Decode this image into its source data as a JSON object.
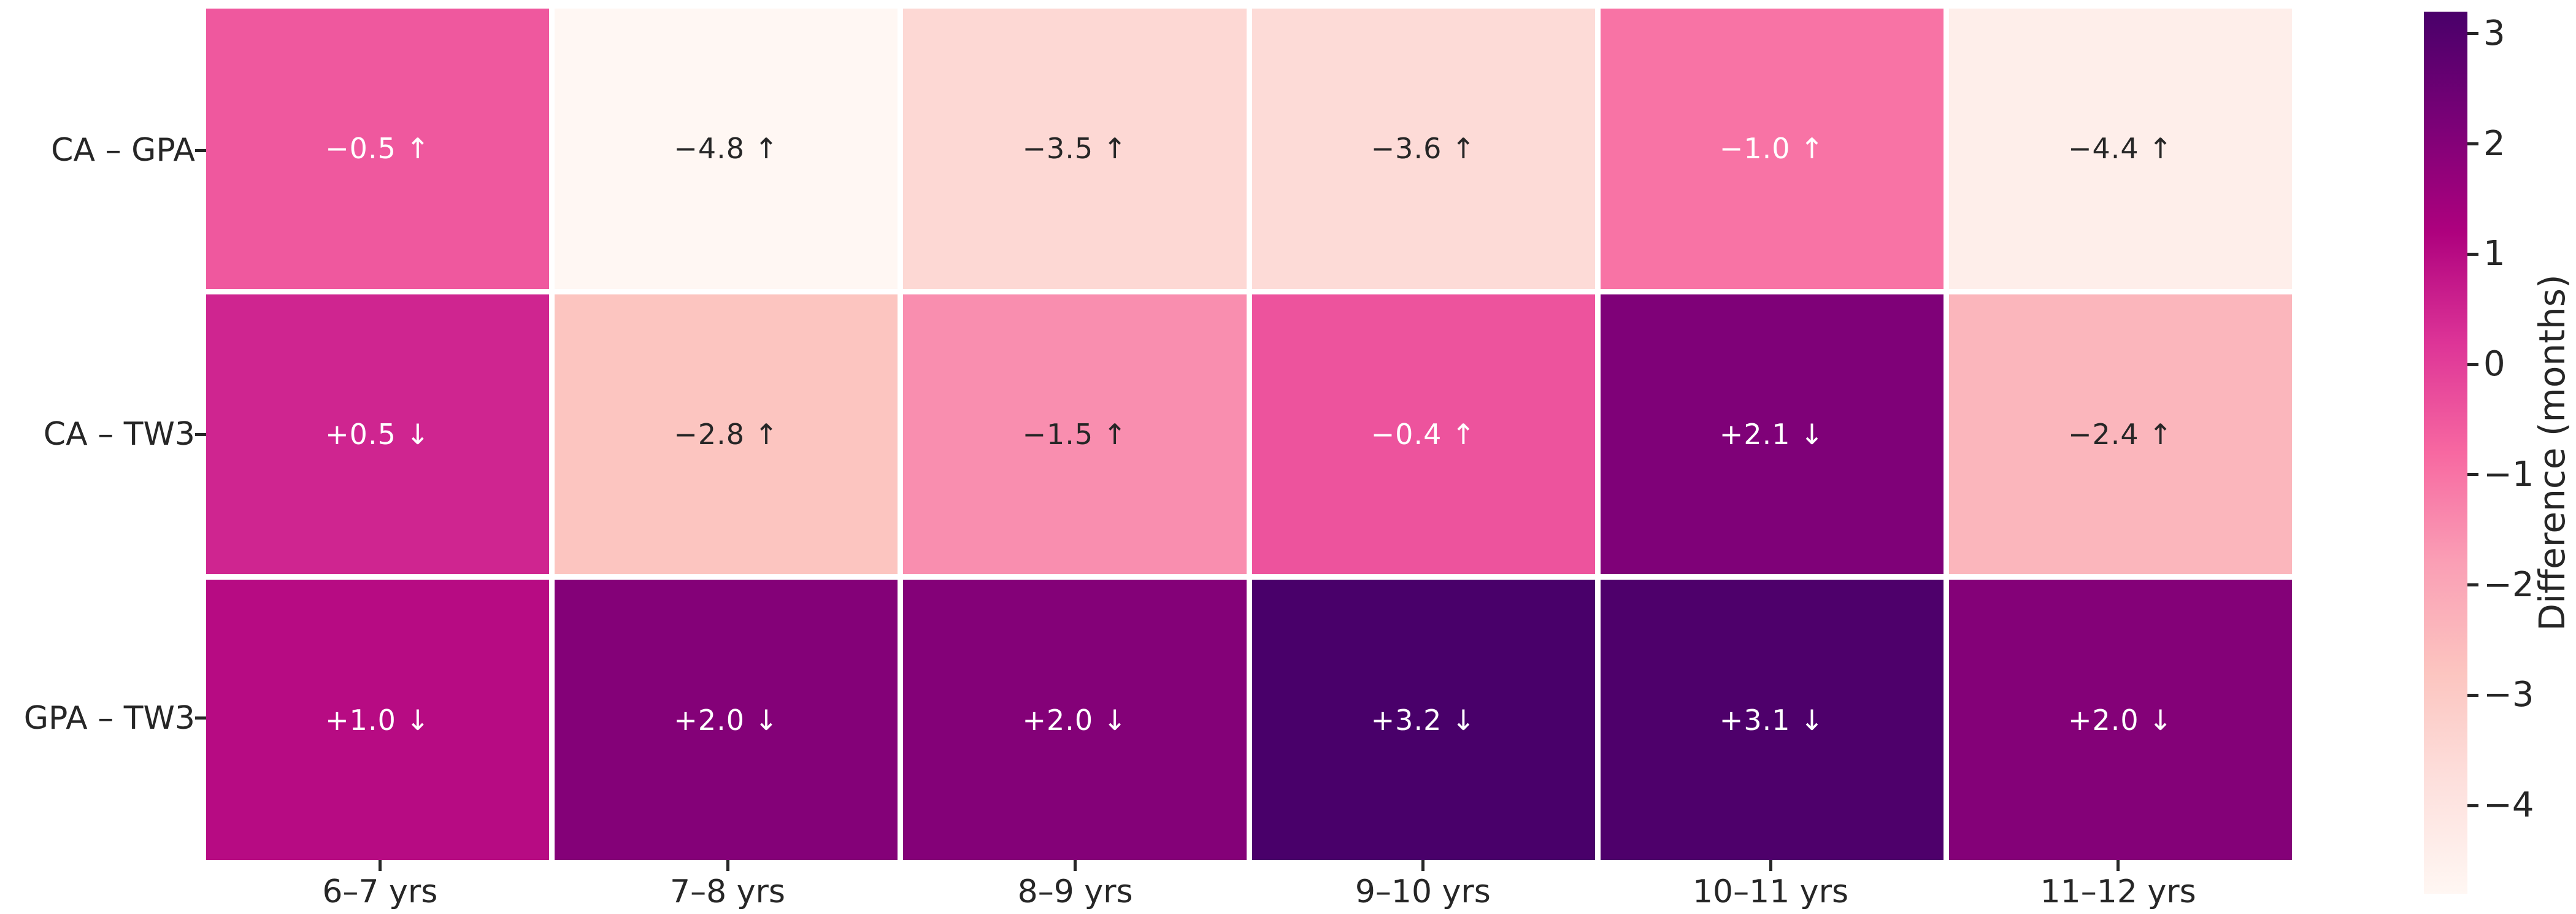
{
  "chart_data": {
    "type": "heatmap",
    "title": "",
    "rows": [
      "CA – GPA",
      "CA – TW3",
      "GPA – TW3"
    ],
    "columns": [
      "6–7 yrs",
      "7–8 yrs",
      "8–9 yrs",
      "9–10 yrs",
      "10–11 yrs",
      "11–12 yrs"
    ],
    "values": [
      [
        -0.5,
        -4.8,
        -3.5,
        -3.6,
        -1.0,
        -4.4
      ],
      [
        0.5,
        -2.8,
        -1.5,
        -0.4,
        2.1,
        -2.4
      ],
      [
        1.0,
        2.0,
        2.0,
        3.2,
        3.1,
        2.0
      ]
    ],
    "cells": [
      [
        {
          "label": "−0.5 ↑",
          "color": "#ef589e",
          "text": "#ffffff"
        },
        {
          "label": "−4.8 ↑",
          "color": "#fff7f3",
          "text": "#262626"
        },
        {
          "label": "−3.5 ↑",
          "color": "#fdd8d4",
          "text": "#262626"
        },
        {
          "label": "−3.6 ↑",
          "color": "#fddbd7",
          "text": "#262626"
        },
        {
          "label": "−1.0 ↑",
          "color": "#f873a5",
          "text": "#ffffff"
        },
        {
          "label": "−4.4 ↑",
          "color": "#feeeea",
          "text": "#262626"
        }
      ],
      [
        {
          "label": "+0.5 ↓",
          "color": "#cf2590",
          "text": "#ffffff"
        },
        {
          "label": "−2.8 ↑",
          "color": "#fcc5c0",
          "text": "#262626"
        },
        {
          "label": "−1.5 ↑",
          "color": "#f98eaf",
          "text": "#262626"
        },
        {
          "label": "−0.4 ↑",
          "color": "#ed539d",
          "text": "#ffffff"
        },
        {
          "label": "+2.1 ↓",
          "color": "#7f0178",
          "text": "#ffffff"
        },
        {
          "label": "−2.4 ↑",
          "color": "#fbb6bc",
          "text": "#262626"
        }
      ],
      [
        {
          "label": "+1.0 ↓",
          "color": "#b70b83",
          "text": "#ffffff"
        },
        {
          "label": "+2.0 ↓",
          "color": "#840178",
          "text": "#ffffff"
        },
        {
          "label": "+2.0 ↓",
          "color": "#840178",
          "text": "#ffffff"
        },
        {
          "label": "+3.2 ↓",
          "color": "#49006a",
          "text": "#ffffff"
        },
        {
          "label": "+3.1 ↓",
          "color": "#4e006b",
          "text": "#ffffff"
        },
        {
          "label": "+2.0 ↓",
          "color": "#840178",
          "text": "#ffffff"
        }
      ]
    ],
    "colorbar": {
      "label": "Difference (months)",
      "ticks": [
        "3",
        "2",
        "1",
        "0",
        "−1",
        "−2",
        "−3",
        "−4"
      ],
      "tick_values": [
        3,
        2,
        1,
        0,
        -1,
        -2,
        -3,
        -4
      ],
      "vmin": -4.8,
      "vmax": 3.2,
      "colormap": "RdPu",
      "gradient_top_to_bottom": [
        {
          "pos": 0,
          "color": "#49006a"
        },
        {
          "pos": 12.5,
          "color": "#7a0177"
        },
        {
          "pos": 25,
          "color": "#ae017e"
        },
        {
          "pos": 37.5,
          "color": "#dd3497"
        },
        {
          "pos": 50,
          "color": "#f768a1"
        },
        {
          "pos": 62.5,
          "color": "#fa9fb5"
        },
        {
          "pos": 75,
          "color": "#fcc5c0"
        },
        {
          "pos": 87.5,
          "color": "#fde0dd"
        },
        {
          "pos": 100,
          "color": "#fff7f3"
        }
      ],
      "legend_position": "right"
    },
    "grid": "white cell separators",
    "xlabel": "",
    "ylabel": ""
  },
  "colors": {
    "background": "#ffffff",
    "axis_text": "#262626"
  }
}
